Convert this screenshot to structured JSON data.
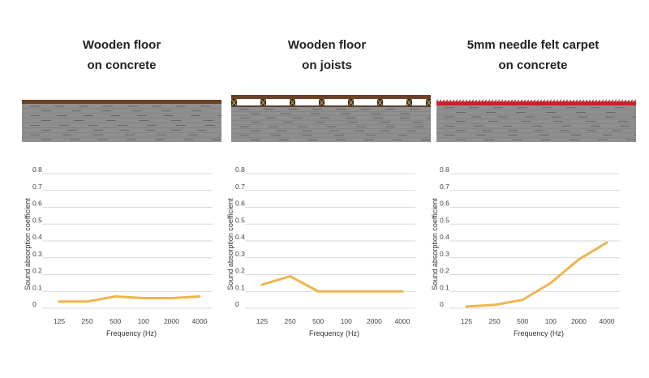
{
  "colors": {
    "line": "#efb54f",
    "grid": "#d9d9d9",
    "stone_fill": "#8f8f8f",
    "stone_line": "#555555",
    "wood": "#6b4226",
    "carpet": "#c8232c"
  },
  "panels": [
    {
      "title_lines": [
        "Wooden floor",
        "on concrete"
      ],
      "illustration": "wooden-floor-on-concrete",
      "chart_data": {
        "type": "line",
        "categories": [
          "125",
          "250",
          "500",
          "100",
          "2000",
          "4000"
        ],
        "values": [
          0.04,
          0.04,
          0.07,
          0.06,
          0.06,
          0.07
        ],
        "yticks": [
          "0",
          "0.1",
          "0.2",
          "0.3",
          "0.4",
          "0.5",
          "0.6",
          "0.7",
          "0.8"
        ],
        "ylim": [
          0,
          0.8
        ],
        "xlabel": "Frequency (Hz)",
        "ylabel": "Sound absorption coefficient",
        "grid": true
      }
    },
    {
      "title_lines": [
        "Wooden floor",
        "on joists"
      ],
      "illustration": "wooden-floor-on-joists",
      "chart_data": {
        "type": "line",
        "categories": [
          "125",
          "250",
          "500",
          "100",
          "2000",
          "4000"
        ],
        "values": [
          0.14,
          0.19,
          0.1,
          0.1,
          0.1,
          0.1
        ],
        "yticks": [
          "0",
          "0.1",
          "0.2",
          "0.3",
          "0.4",
          "0.5",
          "0.6",
          "0.7",
          "0.8"
        ],
        "ylim": [
          0,
          0.8
        ],
        "xlabel": "Frequency (Hz)",
        "ylabel": "Sound absorption coefficient",
        "grid": true
      }
    },
    {
      "title_lines": [
        "5mm needle felt carpet",
        "on concrete"
      ],
      "illustration": "carpet-on-concrete",
      "chart_data": {
        "type": "line",
        "categories": [
          "125",
          "250",
          "500",
          "100",
          "2000",
          "4000"
        ],
        "values": [
          0.01,
          0.02,
          0.05,
          0.15,
          0.29,
          0.39
        ],
        "yticks": [
          "0",
          "0.1",
          "0.2",
          "0.3",
          "0.4",
          "0.5",
          "0.6",
          "0.7",
          "0.8"
        ],
        "ylim": [
          0,
          0.8
        ],
        "xlabel": "Frequency (Hz)",
        "ylabel": "Sound absorption coefficient",
        "grid": true
      }
    }
  ]
}
